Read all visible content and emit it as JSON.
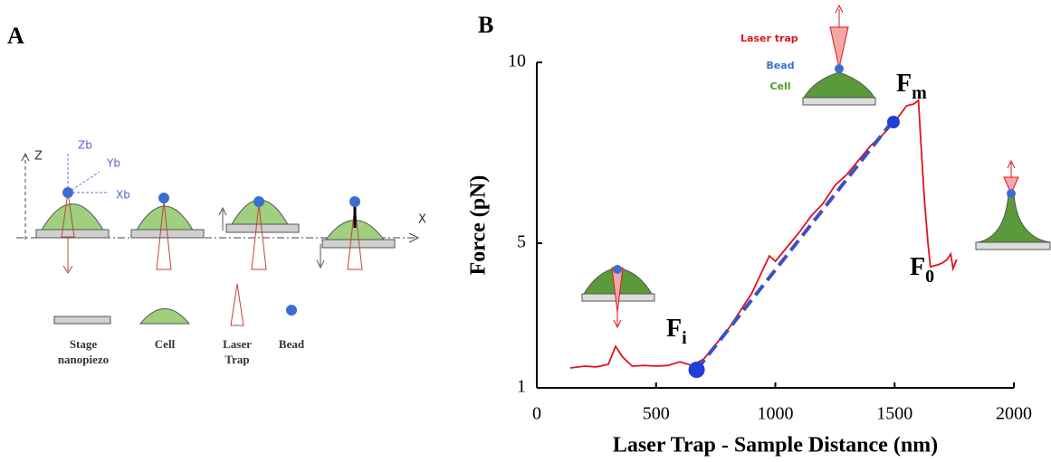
{
  "panel_a": {
    "label": "A",
    "axes": {
      "z": "Z",
      "x": "X",
      "zb": "Zb",
      "yb": "Yb",
      "xb": "Xb"
    },
    "legend": [
      {
        "lines": [
          "Stage",
          "nanopiezo"
        ]
      },
      {
        "lines": [
          "Cell"
        ]
      },
      {
        "lines": [
          "Laser",
          "Trap"
        ]
      },
      {
        "lines": [
          "Bead"
        ]
      }
    ]
  },
  "chart_data": {
    "type": "line",
    "panel_label": "B",
    "xlabel": "Laser Trap - Sample Distance (nm)",
    "ylabel": "Force (pN)",
    "xlim": [
      0,
      2000
    ],
    "xticks": [
      0,
      500,
      1000,
      1500,
      2000
    ],
    "ylim": [
      1,
      10
    ],
    "yticks": [
      1,
      5,
      10
    ],
    "series": [
      {
        "color": "#e0141c",
        "style": "solid",
        "x": [
          140,
          200,
          250,
          300,
          330,
          360,
          400,
          450,
          500,
          550,
          600,
          650,
          700,
          750,
          800,
          850,
          900,
          950,
          975,
          1000,
          1050,
          1100,
          1150,
          1200,
          1250,
          1300,
          1350,
          1400,
          1450,
          1500,
          1550,
          1580,
          1600,
          1610,
          1625,
          1640,
          1650,
          1680,
          1700,
          1720,
          1735,
          1745,
          1760
        ],
        "values": [
          1.55,
          1.6,
          1.58,
          1.65,
          2.15,
          1.85,
          1.6,
          1.62,
          1.6,
          1.62,
          1.72,
          1.62,
          1.8,
          2.2,
          2.6,
          3.1,
          3.6,
          4.3,
          4.65,
          4.5,
          4.9,
          5.3,
          5.75,
          6.1,
          6.6,
          6.9,
          7.3,
          7.7,
          8.0,
          8.35,
          8.8,
          8.85,
          8.95,
          7.8,
          6.2,
          5.0,
          4.35,
          4.4,
          4.45,
          4.55,
          4.7,
          4.3,
          4.55
        ]
      },
      {
        "color": "#3d4fc4",
        "style": "dashed",
        "x": [
          670,
          1495
        ],
        "values": [
          1.5,
          8.4
        ]
      }
    ],
    "points": {
      "color": "#1f3fd8",
      "x": [
        670,
        1495
      ],
      "values": [
        1.5,
        8.35
      ]
    },
    "annotations": [
      {
        "text": "F",
        "sub": "i"
      },
      {
        "text": "F",
        "sub": "m"
      },
      {
        "text": "F",
        "sub": "0"
      }
    ],
    "inset_labels": {
      "laser": "Laser trap",
      "bead": "Bead",
      "cell": "Cell"
    }
  }
}
